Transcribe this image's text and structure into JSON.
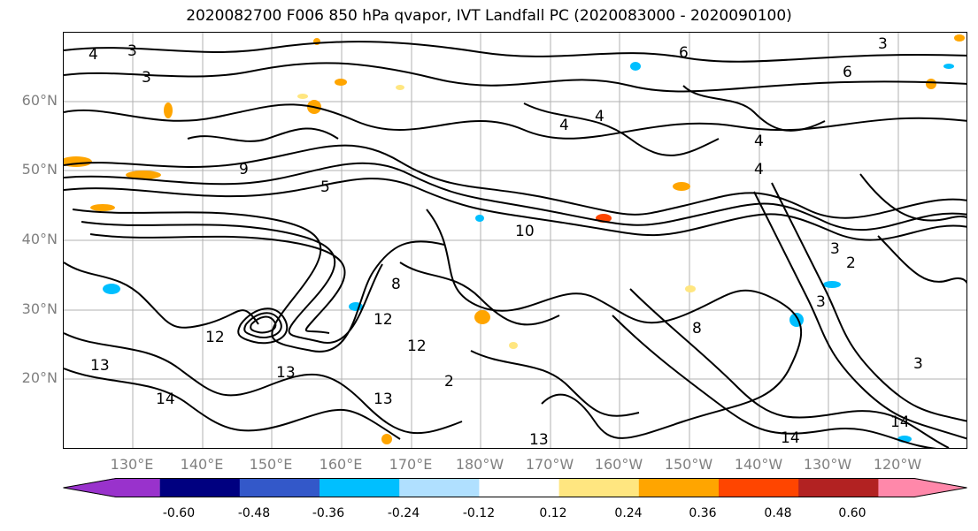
{
  "title": "2020082700 F006 850 hPa qvapor, IVT Landfall PC (2020083000 - 2020090100)",
  "map": {
    "lat_labels": [
      "60°N",
      "50°N",
      "40°N",
      "30°N",
      "20°N"
    ],
    "lon_labels": [
      "130°E",
      "140°E",
      "150°E",
      "160°E",
      "170°E",
      "180°W",
      "170°W",
      "160°W",
      "150°W",
      "140°W",
      "130°W",
      "120°W"
    ],
    "contour_labels": [
      "3",
      "3",
      "6",
      "3",
      "6",
      "4",
      "4",
      "4",
      "4",
      "4",
      "3",
      "9",
      "5",
      "10",
      "12",
      "12",
      "13",
      "13",
      "13",
      "12",
      "14",
      "8",
      "8",
      "2",
      "3",
      "2",
      "14",
      "13",
      "14",
      "3"
    ]
  },
  "colorbar": {
    "colors": [
      "#9932cc",
      "#000080",
      "#3358c9",
      "#00bfff",
      "#b0e0ff",
      "#ffffff",
      "#ffe680",
      "#ffa500",
      "#ff4500",
      "#b22222",
      "#ff88aa"
    ],
    "tick_labels": [
      "-0.60",
      "-0.48",
      "-0.36",
      "-0.24",
      "-0.12",
      "0.12",
      "0.24",
      "0.36",
      "0.48",
      "0.60"
    ]
  }
}
